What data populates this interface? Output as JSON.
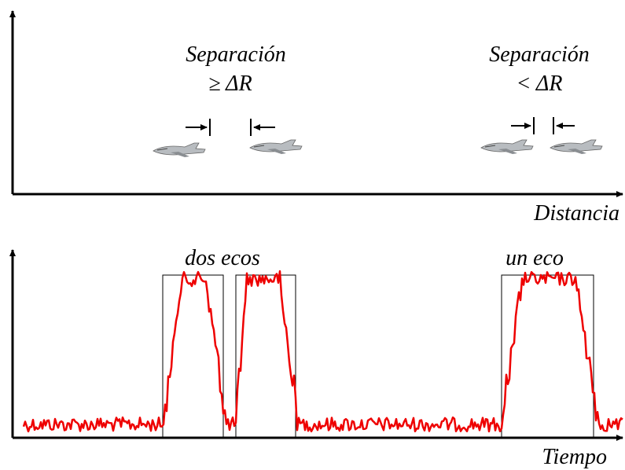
{
  "top_panel": {
    "left_label": {
      "line1": "Separación",
      "line2": "≥ ΔR"
    },
    "right_label": {
      "line1": "Separación",
      "line2": "< ΔR"
    },
    "x_axis_label": "Distancia"
  },
  "bottom_panel": {
    "left_label": "dos ecos",
    "right_label": "un eco",
    "x_axis_label": "Tiempo"
  }
}
